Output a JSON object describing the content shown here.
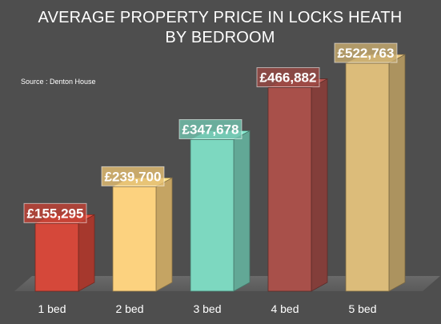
{
  "chart_data": {
    "type": "bar",
    "title": "AVERAGE PROPERTY PRICE IN LOCKS HEATH",
    "title_line2": "BY BEDROOM",
    "source": "Source : Denton House",
    "categories": [
      "1 bed",
      "2 bed",
      "3 bed",
      "4 bed",
      "5 bed"
    ],
    "values": [
      155295,
      239700,
      347678,
      466882,
      522763
    ],
    "data_labels": [
      "£155,295",
      "£239,700",
      "£347,678",
      "£466,882",
      "£522,763"
    ],
    "bar_colors": [
      "#d5483a",
      "#fcd27f",
      "#7dd8c0",
      "#a8504a",
      "#dcbc7a"
    ],
    "ylim": [
      0,
      600000
    ],
    "grid": false,
    "legend": "none",
    "style": "3d-column"
  }
}
